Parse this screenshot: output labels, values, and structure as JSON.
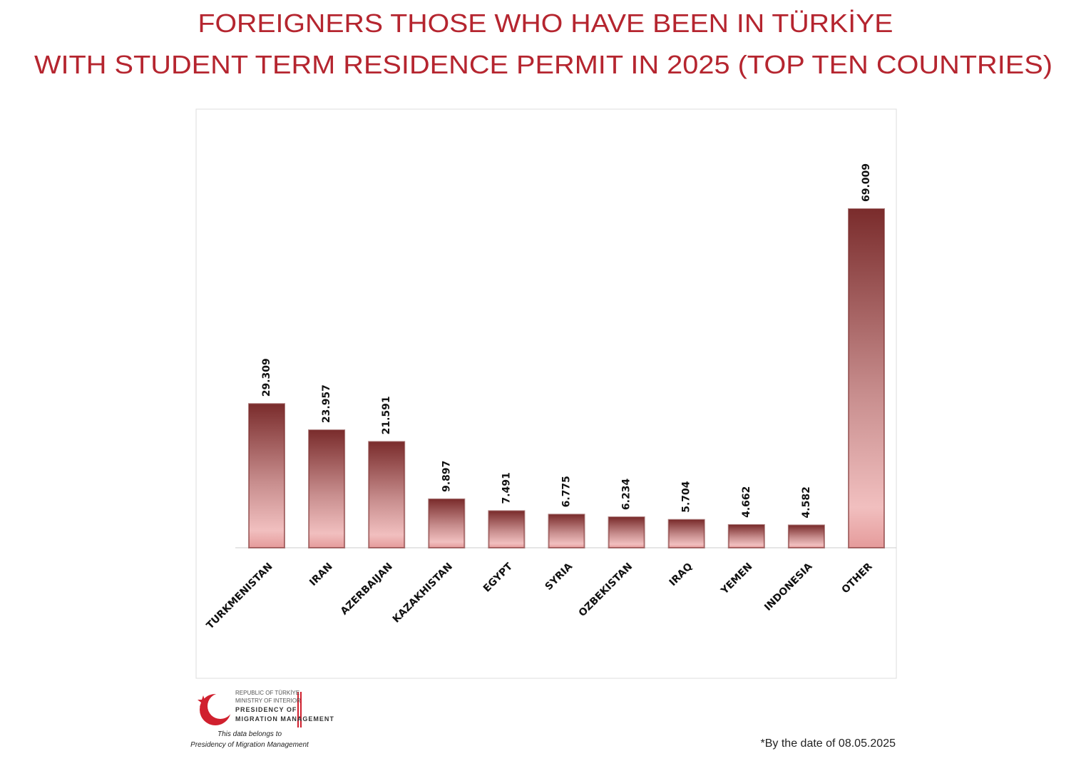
{
  "chart_data": {
    "type": "bar",
    "title": [
      "FOREIGNERS THOSE WHO HAVE BEEN IN TÜRKİYE",
      "WITH STUDENT TERM RESIDENCE PERMIT IN 2025 (TOP TEN COUNTRIES)"
    ],
    "categories": [
      "TURKMENISTAN",
      "IRAN",
      "AZERBAIJAN",
      "KAZAKHISTAN",
      "EGYPT",
      "SYRIA",
      "OZBEKISTAN",
      "IRAQ",
      "YEMEN",
      "INDONESIA",
      "OTHER"
    ],
    "values": [
      29309,
      23957,
      21591,
      9897,
      7491,
      6775,
      6234,
      5704,
      4662,
      4582,
      69009
    ],
    "value_labels": [
      "29.309",
      "23.957",
      "21.591",
      "9.897",
      "7.491",
      "6.775",
      "6.234",
      "5.704",
      "4.662",
      "4.582",
      "69.009"
    ],
    "color": "#7a2c2c",
    "footnote": "*By the date of  08.05.2025"
  },
  "logo": {
    "lines": [
      "REPUBLIC OF TÜRKİYE",
      "MINISTRY OF INTERIOR",
      "PRESIDENCY OF",
      "MIGRATION MANAGEMENT"
    ],
    "caption": [
      "This data belongs to",
      "Presidency of Migration Management"
    ]
  }
}
